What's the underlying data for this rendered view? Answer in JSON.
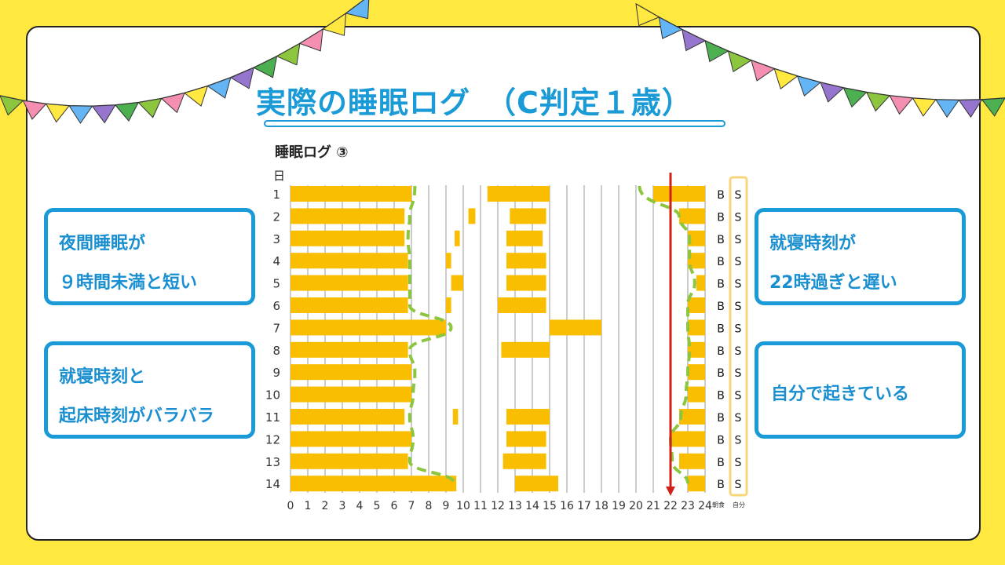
{
  "slide": {
    "title": "実際の睡眠ログ　（C判定１歳）",
    "colors": {
      "background": "#FFE840",
      "accent": "#1a9ad6",
      "bar": "#F9BE00",
      "trend": "#8CC63F",
      "bedtime_line": "#D0201A"
    },
    "bunting_colors": [
      "#8CC63F",
      "#F48FB1",
      "#FFE840",
      "#64B5F6",
      "#9575CD",
      "#4CAF50"
    ]
  },
  "notes": {
    "left_top": [
      "夜間睡眠が",
      "９時間未満と短い"
    ],
    "left_bottom": [
      "就寝時刻と",
      "起床時刻がバラバラ"
    ],
    "right_top": [
      "就寝時刻が",
      "22時過ぎと遅い"
    ],
    "right_bottom": [
      "自分で起きている"
    ]
  },
  "chart_data": {
    "type": "bar",
    "title": "睡眠ログ ③",
    "ylabel": "日",
    "xlim": [
      0,
      24
    ],
    "x_ticks": [
      "0",
      "1",
      "2",
      "3",
      "4",
      "5",
      "6",
      "7",
      "8",
      "9",
      "10",
      "11",
      "12",
      "13",
      "14",
      "15",
      "16",
      "17",
      "18",
      "19",
      "20",
      "21",
      "22",
      "23",
      "24"
    ],
    "days": [
      "1",
      "2",
      "3",
      "4",
      "5",
      "6",
      "7",
      "8",
      "9",
      "10",
      "11",
      "12",
      "13",
      "14"
    ],
    "sleep_intervals": [
      [
        [
          0,
          7
        ],
        [
          11.4,
          15
        ],
        [
          21,
          24
        ]
      ],
      [
        [
          0,
          6.6
        ],
        [
          10.3,
          10.7
        ],
        [
          12.7,
          14.8
        ],
        [
          22.5,
          24
        ]
      ],
      [
        [
          0,
          6.6
        ],
        [
          9.5,
          9.8
        ],
        [
          12.5,
          14.6
        ],
        [
          23,
          24
        ]
      ],
      [
        [
          0,
          6.8
        ],
        [
          9,
          9.3
        ],
        [
          12.5,
          14.8
        ],
        [
          23,
          24
        ]
      ],
      [
        [
          0,
          6.8
        ],
        [
          9.3,
          10
        ],
        [
          12.5,
          14.8
        ],
        [
          23.5,
          24
        ]
      ],
      [
        [
          0,
          6.8
        ],
        [
          9,
          9.3
        ],
        [
          12,
          14.8
        ],
        [
          23,
          24
        ]
      ],
      [
        [
          0,
          9
        ],
        [
          15,
          18
        ],
        [
          23,
          24
        ]
      ],
      [
        [
          0,
          6.8
        ],
        [
          12.2,
          15
        ],
        [
          23,
          24
        ]
      ],
      [
        [
          0,
          7
        ],
        [
          23,
          24
        ]
      ],
      [
        [
          0,
          7
        ],
        [
          23,
          24
        ]
      ],
      [
        [
          0,
          6.6
        ],
        [
          9.4,
          9.7
        ],
        [
          12.5,
          15
        ],
        [
          22.5,
          24
        ]
      ],
      [
        [
          0,
          7
        ],
        [
          12.5,
          14.8
        ],
        [
          22,
          24
        ]
      ],
      [
        [
          0,
          6.8
        ],
        [
          12.3,
          14.8
        ],
        [
          22.5,
          24
        ]
      ],
      [
        [
          0,
          9.6
        ],
        [
          13,
          15.5
        ],
        [
          23,
          24
        ]
      ]
    ],
    "reference_line_hour": 22,
    "breakfast_column": {
      "label": "朝食",
      "values": [
        "B",
        "B",
        "B",
        "B",
        "B",
        "B",
        "B",
        "B",
        "B",
        "B",
        "B",
        "B",
        "B",
        "B"
      ]
    },
    "self_wake_column": {
      "label": "自分",
      "values": [
        "S",
        "S",
        "S",
        "S",
        "S",
        "S",
        "S",
        "S",
        "S",
        "S",
        "S",
        "S",
        "S",
        "S"
      ]
    },
    "wake_trend_hours": [
      7.2,
      6.9,
      6.8,
      6.9,
      6.9,
      6.9,
      9.3,
      6.9,
      7.2,
      7.1,
      6.9,
      7.1,
      6.9,
      9.5
    ],
    "bed_trend_hours": [
      20.2,
      22.5,
      23.1,
      23.1,
      23.4,
      23.0,
      23.0,
      23.1,
      23.0,
      22.9,
      22.6,
      22.0,
      22.1,
      23.0
    ]
  }
}
